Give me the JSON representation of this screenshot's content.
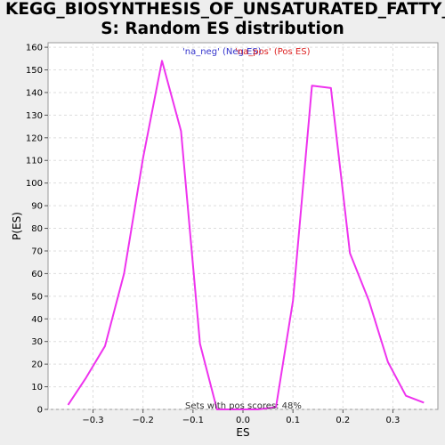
{
  "chart_data": {
    "type": "line",
    "title_line1": "KEGG_BIOSYNTHESIS_OF_UNSATURATED_FATTY_ACID",
    "title_line2": "S: Random ES distribution",
    "xlabel": "ES",
    "ylabel": "P(ES)",
    "xlim": [
      -0.39,
      0.39
    ],
    "ylim": [
      0,
      162
    ],
    "grid": true,
    "legend_placement": "top-center",
    "legend": [
      {
        "label": "'na_neg' (Neg ES)",
        "color": "#3333cc"
      },
      {
        "label": "'na_pos' (Pos ES)",
        "color": "#dd2222"
      }
    ],
    "annotation": "Sets with pos scores: 48%",
    "x_ticks": [
      -0.3,
      -0.2,
      -0.1,
      0.0,
      0.1,
      0.2,
      0.3
    ],
    "x_tick_labels": [
      "−0.3",
      "−0.2",
      "−0.1",
      "0.0",
      "0.1",
      "0.2",
      "0.3"
    ],
    "y_ticks": [
      0,
      10,
      20,
      30,
      40,
      50,
      60,
      70,
      80,
      90,
      100,
      110,
      120,
      130,
      140,
      150,
      160
    ],
    "series": [
      {
        "color": "#ee33ee",
        "x": [
          -0.35,
          -0.314,
          -0.276,
          -0.238,
          -0.2,
          -0.162,
          -0.124,
          -0.086,
          -0.052,
          -0.01,
          0.03,
          0.066,
          0.1,
          0.138,
          0.176,
          0.214,
          0.252,
          0.29,
          0.326,
          0.362
        ],
        "y": [
          2,
          14,
          28,
          60,
          111,
          154,
          123,
          29,
          0,
          0,
          0,
          1,
          48,
          143,
          142,
          69,
          48,
          21,
          6,
          3
        ]
      }
    ]
  }
}
